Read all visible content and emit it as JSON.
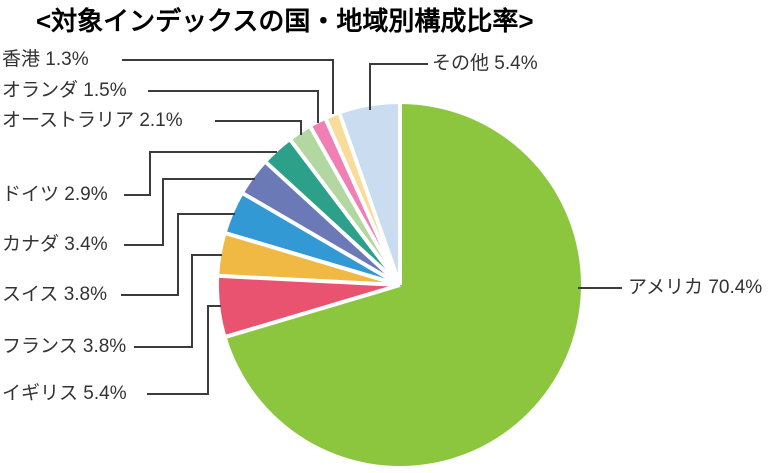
{
  "title": "<対象インデックスの国・地域別構成比率>",
  "chart_data": {
    "type": "pie",
    "title": "対象インデックスの国・地域別構成比率",
    "unit": "%",
    "start_angle_deg": 0,
    "direction": "clockwise",
    "legend": "none (leader-line labels)",
    "slices": [
      {
        "id": "usa",
        "label": "アメリカ",
        "value": 70.4,
        "color": "#8CC63F",
        "display": "アメリカ 70.4%"
      },
      {
        "id": "uk",
        "label": "イギリス",
        "value": 5.4,
        "color": "#E9536F",
        "display": "イギリス 5.4%"
      },
      {
        "id": "france",
        "label": "フランス",
        "value": 3.8,
        "color": "#F0B944",
        "display": "フランス 3.8%"
      },
      {
        "id": "switzerland",
        "label": "スイス",
        "value": 3.8,
        "color": "#3399D4",
        "display": "スイス 3.8%"
      },
      {
        "id": "canada",
        "label": "カナダ",
        "value": 3.4,
        "color": "#6B7AB6",
        "display": "カナダ 3.4%"
      },
      {
        "id": "germany",
        "label": "ドイツ",
        "value": 2.9,
        "color": "#2DA08A",
        "display": "ドイツ 2.9%"
      },
      {
        "id": "australia",
        "label": "オーストラリア",
        "value": 2.1,
        "color": "#B2D7A0",
        "display": "オーストラリア 2.1%"
      },
      {
        "id": "netherlands",
        "label": "オランダ",
        "value": 1.5,
        "color": "#F07FB3",
        "display": "オランダ 1.5%"
      },
      {
        "id": "hongkong",
        "label": "香港",
        "value": 1.3,
        "color": "#FADC9A",
        "display": "香港 1.3%"
      },
      {
        "id": "others",
        "label": "その他",
        "value": 5.4,
        "color": "#C9DCF0",
        "display": "その他 5.4%"
      }
    ],
    "styles": {
      "background": "#ffffff",
      "text_color": "#333333",
      "leader_line_color": "#3c3c3c",
      "separator_color": "#ffffff"
    }
  }
}
